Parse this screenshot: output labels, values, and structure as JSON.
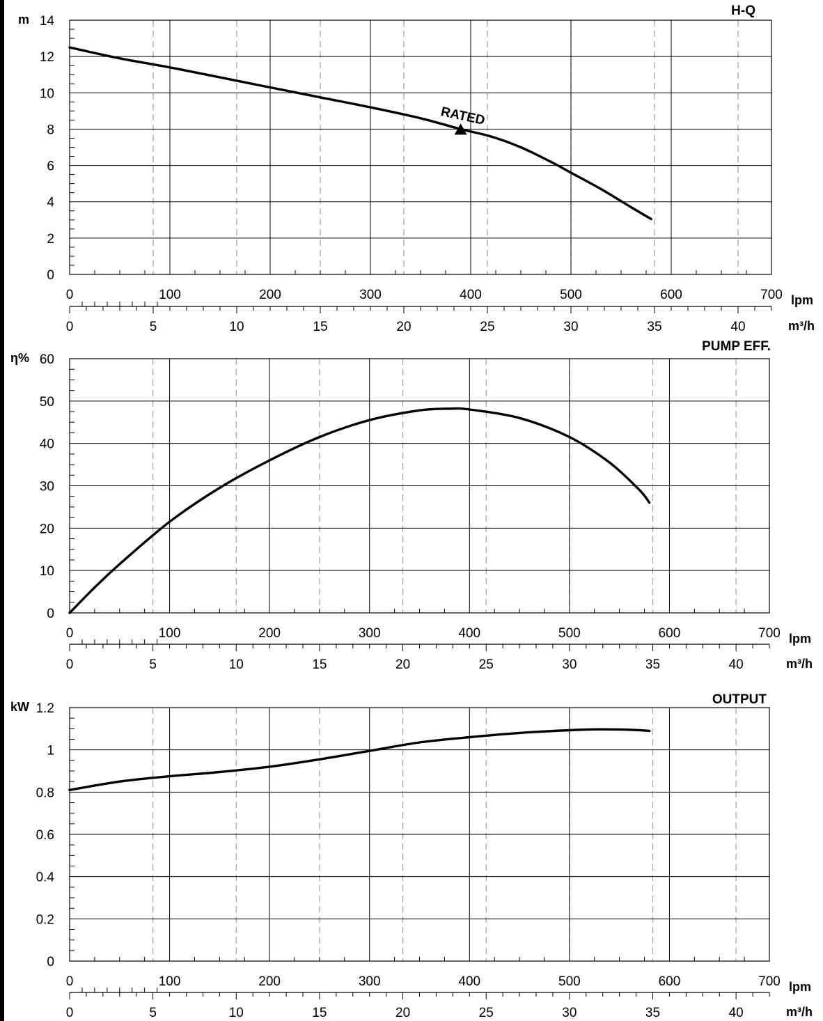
{
  "chart_data": [
    {
      "type": "line",
      "title": "H-Q",
      "ylabel": "m",
      "xlabel": "lpm",
      "xlabel_secondary": "m³/h",
      "xlim": [
        0,
        700
      ],
      "ylim": [
        0,
        14
      ],
      "yticks": [
        "0",
        "2",
        "4",
        "6",
        "8",
        "10",
        "12",
        "14"
      ],
      "xticks": [
        "0",
        "100",
        "200",
        "300",
        "400",
        "500",
        "600",
        "700"
      ],
      "xticks_secondary": [
        "0",
        "5",
        "10",
        "15",
        "20",
        "25",
        "30",
        "35",
        "40"
      ],
      "grid": true,
      "series": [
        {
          "x": [
            0,
            50,
            100,
            150,
            200,
            250,
            300,
            350,
            390,
            420,
            450,
            480,
            500,
            530,
            560,
            580
          ],
          "y": [
            12.5,
            11.9,
            11.4,
            10.85,
            10.3,
            9.75,
            9.2,
            8.6,
            8.0,
            7.6,
            7.0,
            6.2,
            5.6,
            4.7,
            3.7,
            3.05
          ]
        }
      ],
      "annotations": [
        {
          "text": "RATED",
          "x": 390,
          "y": 8.0,
          "marker": "triangle"
        }
      ]
    },
    {
      "type": "line",
      "title": "PUMP EFF.",
      "ylabel": "η%",
      "xlabel": "lpm",
      "xlabel_secondary": "m³/h",
      "xlim": [
        0,
        700
      ],
      "ylim": [
        0,
        60
      ],
      "yticks": [
        "0",
        "10",
        "20",
        "30",
        "40",
        "50",
        "60"
      ],
      "xticks": [
        "0",
        "100",
        "200",
        "300",
        "400",
        "500",
        "600",
        "700"
      ],
      "xticks_secondary": [
        "0",
        "5",
        "10",
        "15",
        "20",
        "25",
        "30",
        "35",
        "40"
      ],
      "grid": true,
      "series": [
        {
          "x": [
            0,
            25,
            50,
            100,
            150,
            200,
            250,
            300,
            350,
            380,
            400,
            450,
            500,
            540,
            570,
            580
          ],
          "y": [
            0,
            6,
            11.5,
            21.5,
            29.5,
            36,
            41.5,
            45.5,
            47.8,
            48.2,
            48,
            46,
            41.5,
            35.5,
            29,
            26
          ]
        }
      ]
    },
    {
      "type": "line",
      "title": "OUTPUT",
      "ylabel": "kW",
      "xlabel": "lpm",
      "xlabel_secondary": "m³/h",
      "xlim": [
        0,
        700
      ],
      "ylim": [
        0,
        1.2
      ],
      "yticks": [
        "0",
        "0.2",
        "0.4",
        "0.6",
        "0.8",
        "1",
        "1.2"
      ],
      "xticks": [
        "0",
        "100",
        "200",
        "300",
        "400",
        "500",
        "600",
        "700"
      ],
      "xticks_secondary": [
        "0",
        "5",
        "10",
        "15",
        "20",
        "25",
        "30",
        "35",
        "40"
      ],
      "grid": true,
      "series": [
        {
          "x": [
            0,
            50,
            100,
            150,
            200,
            250,
            300,
            350,
            400,
            450,
            500,
            530,
            560,
            580
          ],
          "y": [
            0.81,
            0.85,
            0.875,
            0.895,
            0.92,
            0.955,
            0.995,
            1.035,
            1.06,
            1.08,
            1.093,
            1.097,
            1.095,
            1.09
          ]
        }
      ]
    }
  ]
}
